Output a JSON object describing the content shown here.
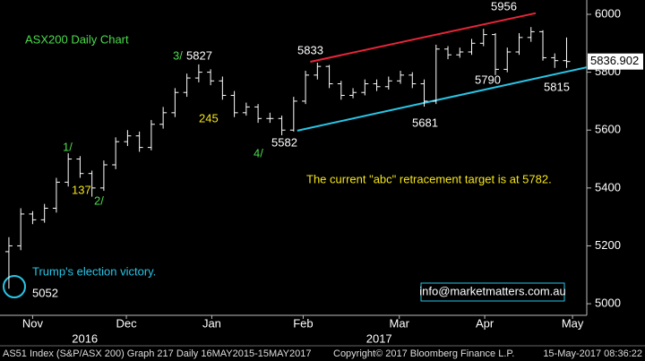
{
  "chart_data": {
    "type": "ohlc",
    "title": "ASX200 Daily Chart",
    "series": [
      {
        "name": "AS51 Index",
        "color": "#ffffff",
        "open": [
          5180,
          5200,
          5310,
          5290,
          5330,
          5420,
          5500,
          5450,
          5400,
          5480,
          5560,
          5580,
          5540,
          5620,
          5660,
          5730,
          5780,
          5800,
          5770,
          5720,
          5660,
          5680,
          5640,
          5640,
          5600,
          5700,
          5790,
          5820,
          5760,
          5720,
          5730,
          5760,
          5750,
          5770,
          5790,
          5760,
          5700,
          5880,
          5860,
          5870,
          5900,
          5930,
          5810,
          5870,
          5920,
          5940,
          5850,
          5840
        ],
        "high": [
          5230,
          5330,
          5320,
          5345,
          5435,
          5520,
          5510,
          5460,
          5495,
          5575,
          5600,
          5595,
          5635,
          5680,
          5745,
          5795,
          5827,
          5810,
          5785,
          5735,
          5695,
          5690,
          5660,
          5650,
          5715,
          5805,
          5833,
          5825,
          5770,
          5745,
          5775,
          5775,
          5785,
          5805,
          5800,
          5775,
          5895,
          5890,
          5885,
          5915,
          5950,
          5935,
          5885,
          5935,
          5956,
          5945,
          5865,
          5920
        ],
        "low": [
          5052,
          5185,
          5275,
          5280,
          5315,
          5405,
          5435,
          5370,
          5390,
          5465,
          5545,
          5525,
          5530,
          5605,
          5645,
          5715,
          5765,
          5755,
          5705,
          5645,
          5650,
          5625,
          5625,
          5582,
          5595,
          5690,
          5775,
          5745,
          5705,
          5710,
          5720,
          5735,
          5740,
          5760,
          5745,
          5681,
          5690,
          5845,
          5850,
          5860,
          5890,
          5790,
          5800,
          5860,
          5905,
          5840,
          5815,
          5815
        ],
        "close": [
          5200,
          5310,
          5290,
          5330,
          5420,
          5500,
          5450,
          5400,
          5480,
          5560,
          5580,
          5540,
          5620,
          5660,
          5730,
          5780,
          5800,
          5770,
          5720,
          5660,
          5680,
          5640,
          5640,
          5600,
          5700,
          5790,
          5820,
          5760,
          5720,
          5730,
          5760,
          5750,
          5770,
          5790,
          5760,
          5700,
          5880,
          5860,
          5870,
          5900,
          5930,
          5810,
          5870,
          5920,
          5940,
          5850,
          5840,
          5836.902
        ]
      }
    ],
    "xlim": [
      -0.75,
      48.7
    ],
    "xticks": [
      {
        "value": 2,
        "label": "Nov"
      },
      {
        "value": 9.9,
        "label": "Dec"
      },
      {
        "value": 17.1,
        "label": "Jan"
      },
      {
        "value": 24.8,
        "label": "Feb"
      },
      {
        "value": 32.9,
        "label": "Mar"
      },
      {
        "value": 40.1,
        "label": "Apr"
      },
      {
        "value": 47.5,
        "label": "May"
      }
    ],
    "xyears": [
      {
        "value": 6.4,
        "label": "2016"
      },
      {
        "value": 31.2,
        "label": "2017"
      }
    ],
    "ylim": [
      4960,
      6049.5
    ],
    "yticks": [
      5000,
      5200,
      5400,
      5600,
      5800,
      6000
    ],
    "grid": false,
    "trendlines": [
      {
        "color": "#e8253a",
        "x": [
          25.4,
          44.4
        ],
        "y": [
          5836,
          6004
        ]
      },
      {
        "color": "#29c5e6",
        "x": [
          24.3,
          48.7
        ],
        "y": [
          5598,
          5817
        ]
      }
    ],
    "annotations": [
      {
        "text": "1/",
        "color": "#4cdb4c"
      },
      {
        "text": "137",
        "color": "#f5e51b"
      },
      {
        "text": "2/",
        "color": "#4cdb4c"
      },
      {
        "text": "3/",
        "color": "#4cdb4c"
      },
      {
        "text": "5827",
        "color": "#ffffff"
      },
      {
        "text": "245",
        "color": "#f5e51b"
      },
      {
        "text": "4/",
        "color": "#4cdb4c"
      },
      {
        "text": "5582",
        "color": "#ffffff"
      },
      {
        "text": "5833",
        "color": "#ffffff"
      },
      {
        "text": "5681",
        "color": "#ffffff"
      },
      {
        "text": "5790",
        "color": "#ffffff"
      },
      {
        "text": "5956",
        "color": "#ffffff"
      },
      {
        "text": "5815",
        "color": "#ffffff"
      },
      {
        "text": "5052",
        "color": "#ffffff"
      },
      {
        "text": "Trump's election victory.",
        "color": "#29c5e6"
      },
      {
        "text": "The current \"abc\" retracement target is at 5782.",
        "color": "#f5e51b"
      }
    ],
    "watermark": "info@marketmatters.com.au",
    "footer": {
      "left": "AS51 Index (S&P/ASX 200) Graph 217  Daily 16MAY2015-15MAY2017",
      "middle": "Copyright© 2017 Bloomberg Finance L.P.",
      "right": "15-May-2017 08:36:22"
    }
  }
}
